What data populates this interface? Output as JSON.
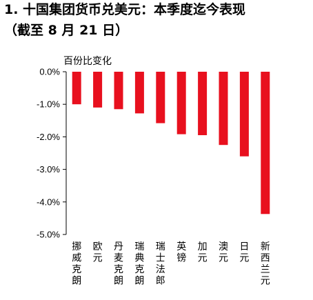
{
  "title_line1": "1. 十国集团货币兑美元：本季度迄今表现",
  "title_line2": "（截至 8 月 21 日）",
  "unit_label": "百份比变化",
  "colors": {
    "bar": "#e8101e",
    "axis": "#000000"
  },
  "chart_data": {
    "type": "bar",
    "title": "1. 十国集团货币兑美元：本季度迄今表现（截至 8 月 21 日）",
    "ylabel": "百份比变化",
    "xlabel": "",
    "categories": [
      "挪威克朗",
      "欧元",
      "丹麦克朗",
      "瑞典克朗",
      "瑞士法郎",
      "英镑",
      "加元",
      "澳元",
      "日元",
      "新西兰元"
    ],
    "values": [
      -1.0,
      -1.1,
      -1.15,
      -1.28,
      -1.58,
      -1.92,
      -1.95,
      -2.25,
      -2.6,
      -4.37
    ],
    "ylim": [
      -5,
      0
    ],
    "yticks": [
      0,
      -1,
      -2,
      -3,
      -4,
      -5
    ],
    "ytick_labels": [
      "0.0%",
      "-1.0%",
      "-2.0%",
      "-3.0%",
      "-4.0%",
      "-5.0%"
    ],
    "grid": false,
    "legend": "none"
  }
}
